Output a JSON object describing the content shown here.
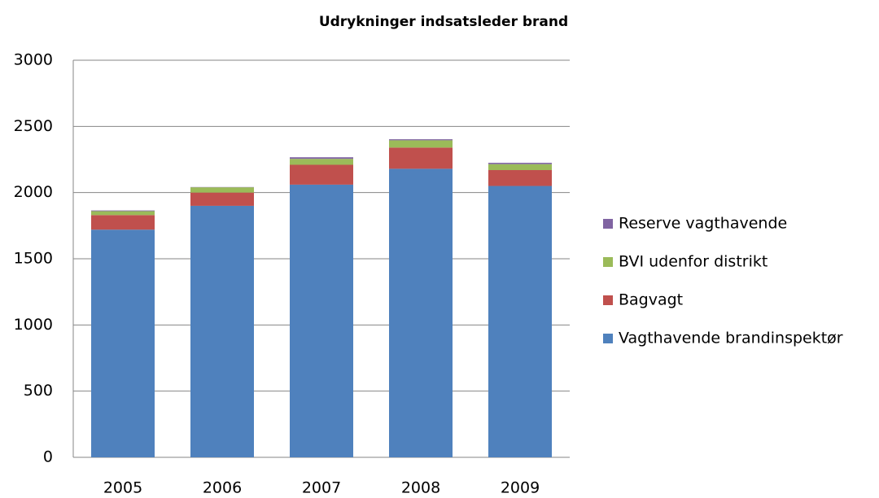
{
  "chart_data": {
    "type": "stacked_bar",
    "title": "Udrykninger indsatsleder brand",
    "categories": [
      "2005",
      "2006",
      "2007",
      "2008",
      "2009"
    ],
    "series": [
      {
        "name": "Vagthavende brandinspektør",
        "color": "#4f81bd",
        "values": [
          1720,
          1900,
          2060,
          2180,
          2050
        ]
      },
      {
        "name": "Bagvagt",
        "color": "#c0504d",
        "values": [
          110,
          100,
          150,
          160,
          120
        ]
      },
      {
        "name": "BVI udenfor distrikt",
        "color": "#9bbb59",
        "values": [
          30,
          40,
          45,
          55,
          45
        ]
      },
      {
        "name": "Reserve vagthavende",
        "color": "#8064a2",
        "values": [
          5,
          2,
          12,
          8,
          10
        ]
      }
    ],
    "ylim": [
      0,
      3000
    ],
    "yticks": [
      0,
      500,
      1000,
      1500,
      2000,
      2500,
      3000
    ],
    "grid": true,
    "legend": "right"
  }
}
